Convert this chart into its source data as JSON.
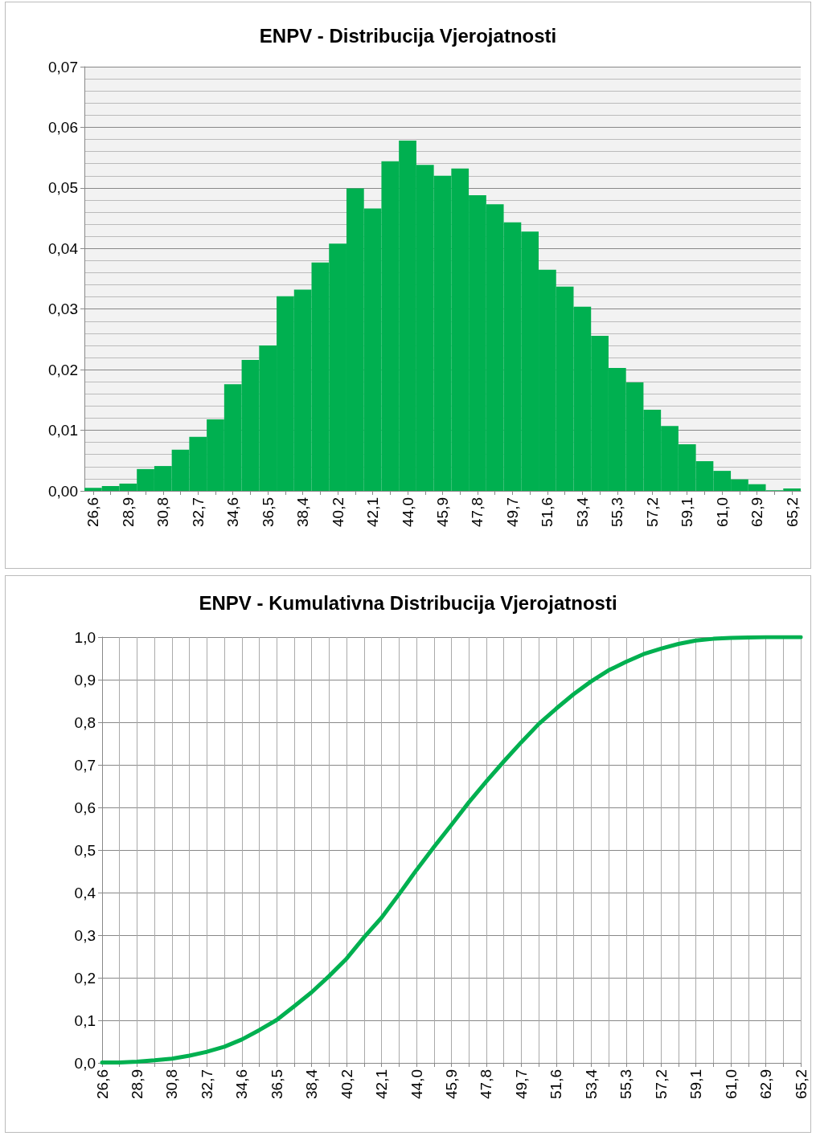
{
  "chart_data": [
    {
      "type": "bar",
      "title": "ENPV - Distribucija Vjerojatnosti",
      "color": "#00b050",
      "grid": "y",
      "categories": [
        "26,6",
        null,
        "28,9",
        null,
        "30,8",
        null,
        "32,7",
        null,
        "34,6",
        null,
        "36,5",
        null,
        "38,4",
        null,
        "40,2",
        null,
        "42,1",
        null,
        "44,0",
        null,
        "45,9",
        null,
        "47,8",
        null,
        "49,7",
        null,
        "51,6",
        null,
        "53,4",
        null,
        "55,3",
        null,
        "57,2",
        null,
        "59,1",
        null,
        "61,0",
        null,
        "62,9",
        null,
        "65,2"
      ],
      "values": [
        0.0005,
        0.0008,
        0.0012,
        0.0036,
        0.0041,
        0.0068,
        0.0089,
        0.0118,
        0.0176,
        0.0216,
        0.024,
        0.0321,
        0.0332,
        0.0377,
        0.0408,
        0.0499,
        0.0466,
        0.0544,
        0.0578,
        0.0538,
        0.052,
        0.0532,
        0.0488,
        0.0473,
        0.0443,
        0.0428,
        0.0365,
        0.0337,
        0.0304,
        0.0256,
        0.0203,
        0.0179,
        0.0134,
        0.0107,
        0.0077,
        0.0049,
        0.0033,
        0.0019,
        0.0011,
        0.0001,
        0.0004
      ],
      "ylim": [
        0,
        0.07
      ],
      "yticks": [
        {
          "value": 0,
          "label": "0,00"
        },
        {
          "value": 0.01,
          "label": "0,01"
        },
        {
          "value": 0.02,
          "label": "0,02"
        },
        {
          "value": 0.03,
          "label": "0,03"
        },
        {
          "value": 0.04,
          "label": "0,04"
        },
        {
          "value": 0.05,
          "label": "0,05"
        },
        {
          "value": 0.06,
          "label": "0,06"
        },
        {
          "value": 0.07,
          "label": "0,07"
        }
      ]
    },
    {
      "type": "line",
      "title": "ENPV - Kumulativna Distribucija Vjerojatnosti",
      "color": "#00b050",
      "grid": true,
      "marker": "none",
      "line_style": "solid",
      "categories": [
        "26,6",
        null,
        "28,9",
        null,
        "30,8",
        null,
        "32,7",
        null,
        "34,6",
        null,
        "36,5",
        null,
        "38,4",
        null,
        "40,2",
        null,
        "42,1",
        null,
        "44,0",
        null,
        "45,9",
        null,
        "47,8",
        null,
        "49,7",
        null,
        "51,6",
        null,
        "53,4",
        null,
        "55,3",
        null,
        "57,2",
        null,
        "59,1",
        null,
        "61,0",
        null,
        "62,9",
        null,
        "65,2"
      ],
      "values": [
        0.001,
        0.001,
        0.003,
        0.006,
        0.01,
        0.017,
        0.026,
        0.038,
        0.055,
        0.077,
        0.101,
        0.133,
        0.166,
        0.204,
        0.245,
        0.295,
        0.341,
        0.396,
        0.453,
        0.507,
        0.559,
        0.612,
        0.661,
        0.708,
        0.753,
        0.796,
        0.832,
        0.866,
        0.896,
        0.922,
        0.942,
        0.96,
        0.973,
        0.984,
        0.992,
        0.996,
        0.998,
        0.999,
        1.0,
        1.0,
        1.0
      ],
      "ylim": [
        0,
        1
      ],
      "yticks": [
        {
          "value": 0,
          "label": "0,0"
        },
        {
          "value": 0.1,
          "label": "0,1"
        },
        {
          "value": 0.2,
          "label": "0,2"
        },
        {
          "value": 0.3,
          "label": "0,3"
        },
        {
          "value": 0.4,
          "label": "0,4"
        },
        {
          "value": 0.5,
          "label": "0,5"
        },
        {
          "value": 0.6,
          "label": "0,6"
        },
        {
          "value": 0.7,
          "label": "0,7"
        },
        {
          "value": 0.8,
          "label": "0,8"
        },
        {
          "value": 0.9,
          "label": "0,9"
        },
        {
          "value": 1,
          "label": "1,0"
        }
      ]
    }
  ]
}
